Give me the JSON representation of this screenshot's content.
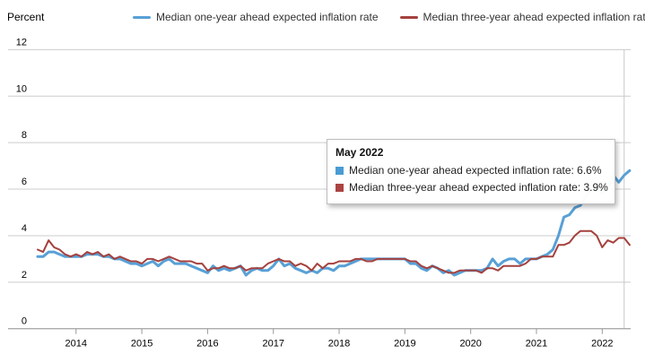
{
  "y_axis_title": "Percent",
  "legend": {
    "items": [
      {
        "label": "Median one-year ahead expected inflation rate",
        "color": "#58A0D6"
      },
      {
        "label": "Median three-year ahead expected inflation rate",
        "color": "#A5413E"
      }
    ]
  },
  "tooltip": {
    "title": "May 2022",
    "rows": [
      {
        "text": "Median one-year ahead expected inflation rate: 6.6%",
        "color": "#4A9BD4"
      },
      {
        "text": "Median three-year ahead expected inflation rate: 3.9%",
        "color": "#AA4341"
      }
    ]
  },
  "axes": {
    "y_ticks": [
      12,
      10,
      8,
      6,
      4,
      2,
      0
    ],
    "x_ticks": [
      "2014",
      "2015",
      "2016",
      "2017",
      "2018",
      "2019",
      "2020",
      "2021",
      "2022"
    ]
  },
  "colors": {
    "gridline": "#cccccc",
    "axis_line": "#999999",
    "tick": "#999999",
    "crosshair": "#c8c8c8",
    "axis_text": "#000000"
  },
  "chart_data": {
    "type": "line",
    "title": "",
    "ylabel": "Percent",
    "ylim": [
      0,
      12
    ],
    "x_start": "2013-06",
    "x_end": "2022-06",
    "frequency": "monthly",
    "grid": true,
    "legend_position": "top",
    "highlight": {
      "label": "May 2022",
      "index": 107,
      "one_year": 6.6,
      "three_year": 3.9
    },
    "series": [
      {
        "name": "Median one-year ahead expected inflation rate",
        "color": "#58A0D6",
        "values": [
          3.1,
          3.1,
          3.3,
          3.3,
          3.2,
          3.1,
          3.1,
          3.1,
          3.1,
          3.2,
          3.2,
          3.2,
          3.1,
          3.1,
          3.0,
          3.0,
          2.9,
          2.8,
          2.8,
          2.7,
          2.8,
          2.9,
          2.7,
          2.9,
          3.0,
          2.8,
          2.8,
          2.8,
          2.7,
          2.6,
          2.5,
          2.4,
          2.7,
          2.5,
          2.6,
          2.5,
          2.6,
          2.7,
          2.3,
          2.5,
          2.6,
          2.5,
          2.5,
          2.7,
          3.0,
          2.7,
          2.8,
          2.6,
          2.5,
          2.4,
          2.5,
          2.4,
          2.6,
          2.6,
          2.5,
          2.7,
          2.7,
          2.8,
          2.9,
          3.0,
          3.0,
          3.0,
          3.0,
          3.0,
          3.0,
          3.0,
          3.0,
          3.0,
          2.8,
          2.8,
          2.6,
          2.5,
          2.7,
          2.6,
          2.4,
          2.5,
          2.3,
          2.4,
          2.5,
          2.5,
          2.5,
          2.5,
          2.6,
          3.0,
          2.7,
          2.9,
          3.0,
          3.0,
          2.8,
          3.0,
          3.0,
          3.0,
          3.1,
          3.2,
          3.4,
          4.0,
          4.8,
          4.9,
          5.2,
          5.3,
          5.7,
          6.0,
          6.0,
          5.8,
          6.0,
          6.6,
          6.3,
          6.6,
          6.8
        ]
      },
      {
        "name": "Median three-year ahead expected inflation rate",
        "color": "#A5413E",
        "values": [
          3.4,
          3.3,
          3.8,
          3.5,
          3.4,
          3.2,
          3.1,
          3.2,
          3.1,
          3.3,
          3.2,
          3.3,
          3.1,
          3.2,
          3.0,
          3.1,
          3.0,
          2.9,
          2.9,
          2.8,
          3.0,
          3.0,
          2.9,
          3.0,
          3.1,
          3.0,
          2.9,
          2.9,
          2.9,
          2.8,
          2.8,
          2.5,
          2.6,
          2.6,
          2.7,
          2.6,
          2.6,
          2.7,
          2.5,
          2.6,
          2.6,
          2.6,
          2.8,
          2.9,
          3.0,
          2.9,
          2.9,
          2.7,
          2.8,
          2.7,
          2.5,
          2.8,
          2.6,
          2.8,
          2.8,
          2.9,
          2.9,
          2.9,
          3.0,
          3.0,
          2.9,
          2.9,
          3.0,
          3.0,
          3.0,
          3.0,
          3.0,
          3.0,
          2.9,
          2.9,
          2.7,
          2.6,
          2.7,
          2.6,
          2.5,
          2.4,
          2.4,
          2.5,
          2.5,
          2.5,
          2.5,
          2.4,
          2.6,
          2.6,
          2.5,
          2.7,
          2.7,
          2.7,
          2.7,
          2.8,
          3.0,
          3.0,
          3.1,
          3.1,
          3.1,
          3.6,
          3.6,
          3.7,
          4.0,
          4.2,
          4.2,
          4.2,
          4.0,
          3.5,
          3.8,
          3.7,
          3.9,
          3.9,
          3.6
        ]
      }
    ]
  }
}
